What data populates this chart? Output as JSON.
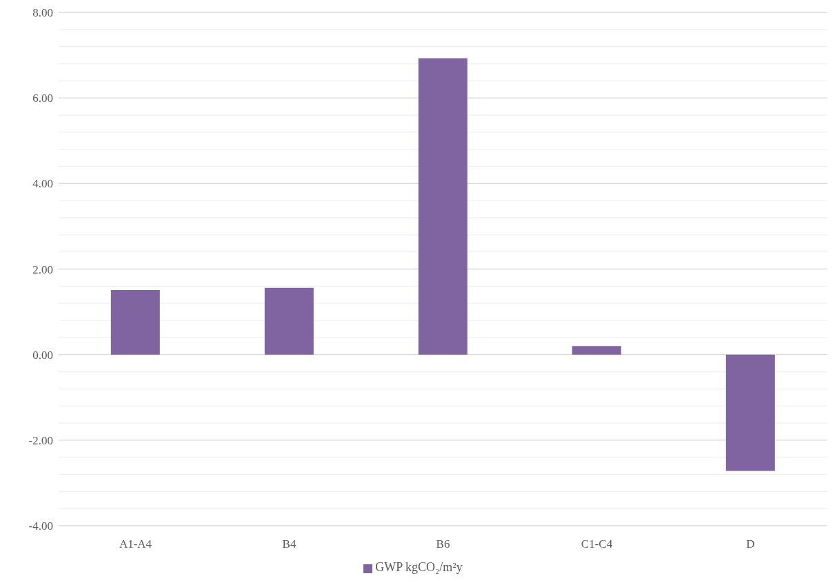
{
  "chart_data": {
    "type": "bar",
    "categories": [
      "A1-A4",
      "B4",
      "B6",
      "C1-C4",
      "D"
    ],
    "series": [
      {
        "name": "GWP kgCO₂/m²y",
        "color": "#8064a2",
        "values": [
          1.51,
          1.56,
          6.93,
          0.2,
          -2.72
        ]
      }
    ],
    "ylim": [
      -4,
      8
    ],
    "yticks": [
      {
        "value": -4,
        "label": "-4.00"
      },
      {
        "value": -3.6,
        "label": null
      },
      {
        "value": -3.2,
        "label": null
      },
      {
        "value": -2.8,
        "label": null
      },
      {
        "value": -2.4,
        "label": null
      },
      {
        "value": -2,
        "label": "-2.00"
      },
      {
        "value": -1.6,
        "label": null
      },
      {
        "value": -1.2,
        "label": null
      },
      {
        "value": -0.8,
        "label": null
      },
      {
        "value": -0.4,
        "label": null
      },
      {
        "value": 0,
        "label": "0.00"
      },
      {
        "value": 0.4,
        "label": null
      },
      {
        "value": 0.8,
        "label": null
      },
      {
        "value": 1.2,
        "label": null
      },
      {
        "value": 1.6,
        "label": null
      },
      {
        "value": 2,
        "label": "2.00"
      },
      {
        "value": 2.4,
        "label": null
      },
      {
        "value": 2.8,
        "label": null
      },
      {
        "value": 3.2,
        "label": null
      },
      {
        "value": 3.6,
        "label": null
      },
      {
        "value": 4,
        "label": "4.00"
      },
      {
        "value": 4.4,
        "label": null
      },
      {
        "value": 4.8,
        "label": null
      },
      {
        "value": 5.2,
        "label": null
      },
      {
        "value": 5.6,
        "label": null
      },
      {
        "value": 6,
        "label": "6.00"
      },
      {
        "value": 6.4,
        "label": null
      },
      {
        "value": 6.8,
        "label": null
      },
      {
        "value": 7.2,
        "label": null
      },
      {
        "value": 7.6,
        "label": null
      },
      {
        "value": 8,
        "label": "8.00"
      }
    ],
    "grid": "y",
    "legend": "bottom"
  }
}
